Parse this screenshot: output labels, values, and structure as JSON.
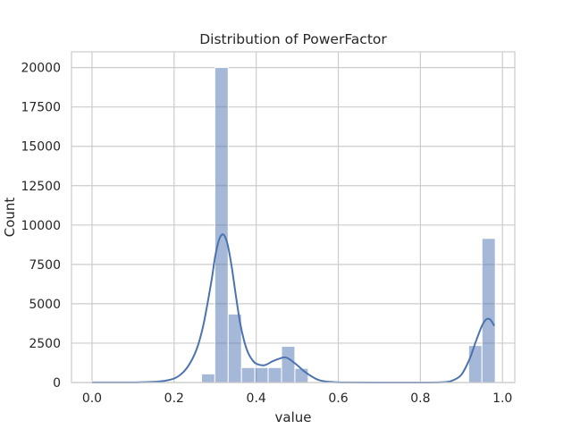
{
  "chart_data": {
    "type": "bar",
    "subtype": "histogram",
    "title": "Distribution of PowerFactor",
    "xlabel": "value",
    "ylabel": "Count",
    "xlim": [
      -0.05,
      1.03
    ],
    "ylim": [
      0,
      21000
    ],
    "xticks": [
      0.0,
      0.2,
      0.4,
      0.6,
      0.8,
      1.0
    ],
    "xtick_labels": [
      "0.0",
      "0.2",
      "0.4",
      "0.6",
      "0.8",
      "1.0"
    ],
    "yticks": [
      0,
      2500,
      5000,
      7500,
      10000,
      12500,
      15000,
      17500,
      20000
    ],
    "ytick_labels": [
      "0",
      "2500",
      "5000",
      "7500",
      "10000",
      "12500",
      "15000",
      "17500",
      "20000"
    ],
    "grid": true,
    "bar_color": "#4c72b0",
    "kde_color": "#4c72b0",
    "bins": [
      {
        "x0": 0.0,
        "x1": 0.0325,
        "count": 80
      },
      {
        "x0": 0.2667,
        "x1": 0.2992,
        "count": 550
      },
      {
        "x0": 0.2992,
        "x1": 0.3317,
        "count": 20000
      },
      {
        "x0": 0.3317,
        "x1": 0.3642,
        "count": 4350
      },
      {
        "x0": 0.3642,
        "x1": 0.3967,
        "count": 950
      },
      {
        "x0": 0.3967,
        "x1": 0.4292,
        "count": 950
      },
      {
        "x0": 0.4292,
        "x1": 0.4617,
        "count": 950
      },
      {
        "x0": 0.4617,
        "x1": 0.4942,
        "count": 2300
      },
      {
        "x0": 0.4942,
        "x1": 0.5267,
        "count": 900
      },
      {
        "x0": 0.9175,
        "x1": 0.95,
        "count": 2350
      },
      {
        "x0": 0.95,
        "x1": 0.9825,
        "count": 9150
      }
    ],
    "kde": {
      "x": [
        0.0,
        0.1,
        0.18,
        0.22,
        0.25,
        0.27,
        0.29,
        0.3,
        0.31,
        0.32,
        0.33,
        0.34,
        0.35,
        0.36,
        0.37,
        0.38,
        0.39,
        0.4,
        0.42,
        0.44,
        0.46,
        0.47,
        0.48,
        0.5,
        0.52,
        0.55,
        0.58,
        0.62,
        0.7,
        0.8,
        0.86,
        0.88,
        0.9,
        0.92,
        0.935,
        0.95,
        0.96,
        0.97,
        0.98
      ],
      "y": [
        10,
        5,
        120,
        600,
        1800,
        3500,
        6300,
        8000,
        9100,
        9400,
        8800,
        7400,
        5600,
        3900,
        2700,
        1900,
        1450,
        1200,
        1100,
        1350,
        1550,
        1600,
        1500,
        1100,
        650,
        180,
        40,
        5,
        0,
        0,
        30,
        150,
        500,
        1500,
        2600,
        3600,
        4000,
        4000,
        3600
      ]
    }
  }
}
